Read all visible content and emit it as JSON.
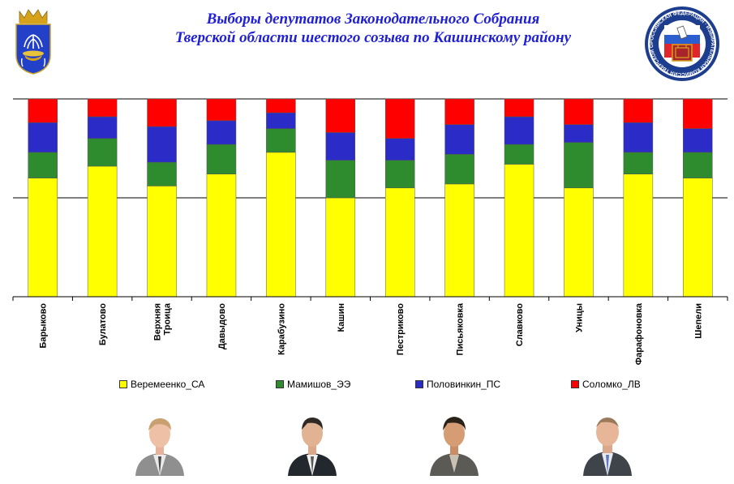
{
  "header": {
    "title_line1": "Выборы депутатов Законодательного Собрания",
    "title_line2": "Тверской области шестого созыва по Кашинскому району"
  },
  "logos": {
    "left": "coat-of-arms-kashin",
    "right_text": "РОССИЙСКАЯ ФЕДЕРАЦИЯ · ИЗБИРАТЕЛЬНАЯ КОМИССИЯ ТВЕРСКОЙ ОБЛАСТИ"
  },
  "chart_data": {
    "type": "bar",
    "stacked": true,
    "percent_stacked": true,
    "categories": [
      "Барыково",
      "Булатово",
      "Верхняя Троица",
      "Давыдово",
      "Карабузино",
      "Кашин",
      "Пестриково",
      "Письяковка",
      "Славково",
      "Уницы",
      "Фарафоновка",
      "Шепели"
    ],
    "series": [
      {
        "name": "Веремеенко_СА",
        "color": "#ffff00",
        "values": [
          60,
          66,
          56,
          62,
          73,
          50,
          55,
          57,
          67,
          55,
          62,
          60
        ]
      },
      {
        "name": "Мамишов_ЭЭ",
        "color": "#2e8b2e",
        "values": [
          13,
          14,
          12,
          15,
          12,
          19,
          14,
          15,
          10,
          23,
          11,
          13
        ]
      },
      {
        "name": "Половинкин_ПС",
        "color": "#2b2bc8",
        "values": [
          15,
          11,
          18,
          12,
          8,
          14,
          11,
          15,
          14,
          9,
          15,
          12
        ]
      },
      {
        "name": "Соломко_ЛВ",
        "color": "#ff0000",
        "values": [
          12,
          9,
          14,
          11,
          7,
          17,
          20,
          13,
          9,
          13,
          12,
          15
        ]
      }
    ],
    "ylim": [
      0,
      100
    ],
    "gridlines": [
      50,
      100
    ],
    "legend_position": "bottom"
  },
  "photos": [
    {
      "name": "Веремеенко_СА",
      "icon": "portrait-1"
    },
    {
      "name": "Мамишов_ЭЭ",
      "icon": "portrait-2"
    },
    {
      "name": "Половинкин_ПС",
      "icon": "portrait-3"
    },
    {
      "name": "Соломко_ЛВ",
      "icon": "portrait-4"
    }
  ]
}
